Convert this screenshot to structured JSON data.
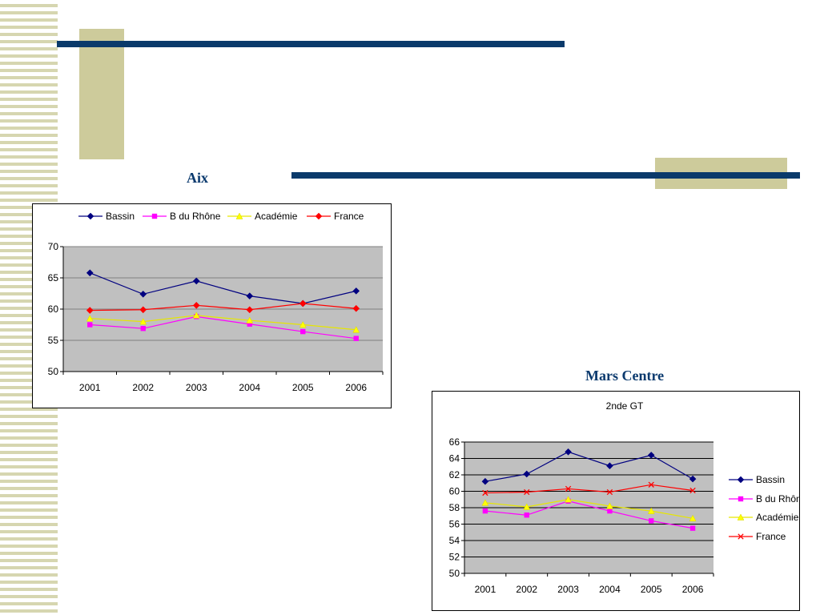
{
  "slide": {
    "left_title": "Aix",
    "right_title": "Mars Centre"
  },
  "colors": {
    "navy": "#0a3a6b",
    "khaki": "#cdcb9b",
    "plot_bg": "#c0c0c0",
    "Bassin": "#000080",
    "B du Rhône": "#ff00ff",
    "Académie": "#ffff00",
    "France": "#ff0000"
  },
  "chart_data": [
    {
      "type": "line",
      "title": "",
      "categories": [
        "2001",
        "2002",
        "2003",
        "2004",
        "2005",
        "2006"
      ],
      "ylim": [
        50,
        70
      ],
      "yticks": [
        50,
        55,
        60,
        65,
        70
      ],
      "legend_position": "top",
      "series": [
        {
          "name": "Bassin",
          "marker": "diamond",
          "values": [
            65.8,
            62.4,
            64.5,
            62.1,
            60.9,
            62.9
          ]
        },
        {
          "name": "B du Rhône",
          "marker": "square",
          "values": [
            57.5,
            56.9,
            58.8,
            57.6,
            56.4,
            55.3
          ]
        },
        {
          "name": "Académie",
          "marker": "triangle",
          "values": [
            58.5,
            58.0,
            59.0,
            58.2,
            57.5,
            56.7
          ]
        },
        {
          "name": "France",
          "marker": "diamond",
          "values": [
            59.8,
            59.9,
            60.6,
            59.9,
            60.9,
            60.1
          ]
        }
      ]
    },
    {
      "type": "line",
      "title": "2nde GT",
      "categories": [
        "2001",
        "2002",
        "2003",
        "2004",
        "2005",
        "2006"
      ],
      "ylim": [
        50,
        66
      ],
      "yticks": [
        50,
        52,
        54,
        56,
        58,
        60,
        62,
        64,
        66
      ],
      "legend_position": "right",
      "series": [
        {
          "name": "Bassin",
          "marker": "diamond",
          "values": [
            61.2,
            62.1,
            64.8,
            63.1,
            64.4,
            61.5
          ]
        },
        {
          "name": "B du Rhône",
          "marker": "square",
          "values": [
            57.6,
            57.1,
            58.8,
            57.6,
            56.4,
            55.5
          ]
        },
        {
          "name": "Académie",
          "marker": "triangle",
          "values": [
            58.6,
            58.1,
            59.0,
            58.2,
            57.6,
            56.7
          ]
        },
        {
          "name": "France",
          "marker": "x",
          "values": [
            59.8,
            59.9,
            60.3,
            59.9,
            60.8,
            60.1
          ]
        }
      ]
    }
  ]
}
